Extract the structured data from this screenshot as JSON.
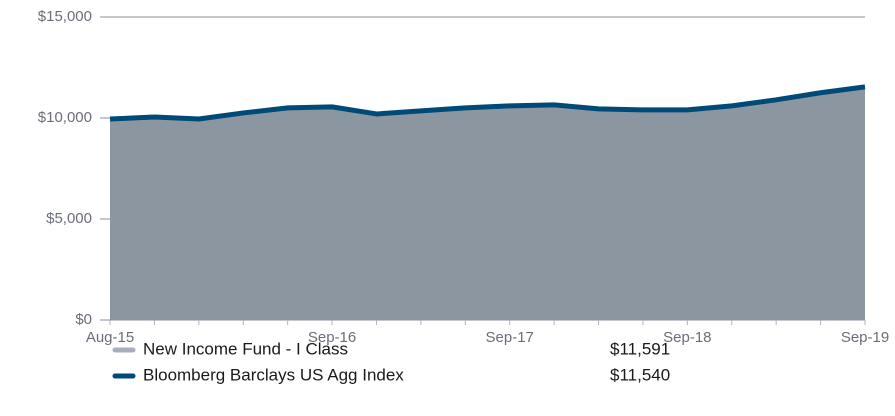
{
  "chart_data": {
    "type": "area_line",
    "categories": [
      "Aug-15",
      null,
      null,
      null,
      null,
      "Sep-16",
      null,
      null,
      null,
      "Sep-17",
      null,
      null,
      null,
      "Sep-18",
      null,
      null,
      null,
      "Sep-19"
    ],
    "series": [
      {
        "name": "New Income Fund - I Class",
        "color": "#8c96a1",
        "legend_color": "#a9aebf",
        "values": [
          9950,
          10030,
          9940,
          10230,
          10480,
          10520,
          10180,
          10330,
          10480,
          10580,
          10640,
          10460,
          10420,
          10420,
          10600,
          10900,
          11260,
          11591
        ],
        "value_labels": [
          null,
          null,
          null,
          null,
          null,
          null,
          null,
          null,
          null,
          null,
          null,
          null,
          null,
          null,
          null,
          null,
          null,
          "$11,591"
        ]
      },
      {
        "name": "Bloomberg Barclays US Agg Index",
        "color": "#004a77",
        "values": [
          9950,
          10050,
          9950,
          10250,
          10500,
          10550,
          10200,
          10350,
          10500,
          10600,
          10650,
          10450,
          10400,
          10400,
          10600,
          10900,
          11250,
          11540
        ],
        "value_labels": [
          null,
          null,
          null,
          null,
          null,
          null,
          null,
          null,
          null,
          null,
          null,
          null,
          null,
          null,
          null,
          null,
          null,
          "$11,540"
        ]
      }
    ],
    "ylim": [
      0,
      15000
    ],
    "yticks": [
      {
        "value": 0,
        "label": "$0"
      },
      {
        "value": 5000,
        "label": "$5,000"
      },
      {
        "value": 10000,
        "label": "$10,000"
      },
      {
        "value": 15000,
        "label": "$15,000"
      }
    ],
    "grid": true
  }
}
